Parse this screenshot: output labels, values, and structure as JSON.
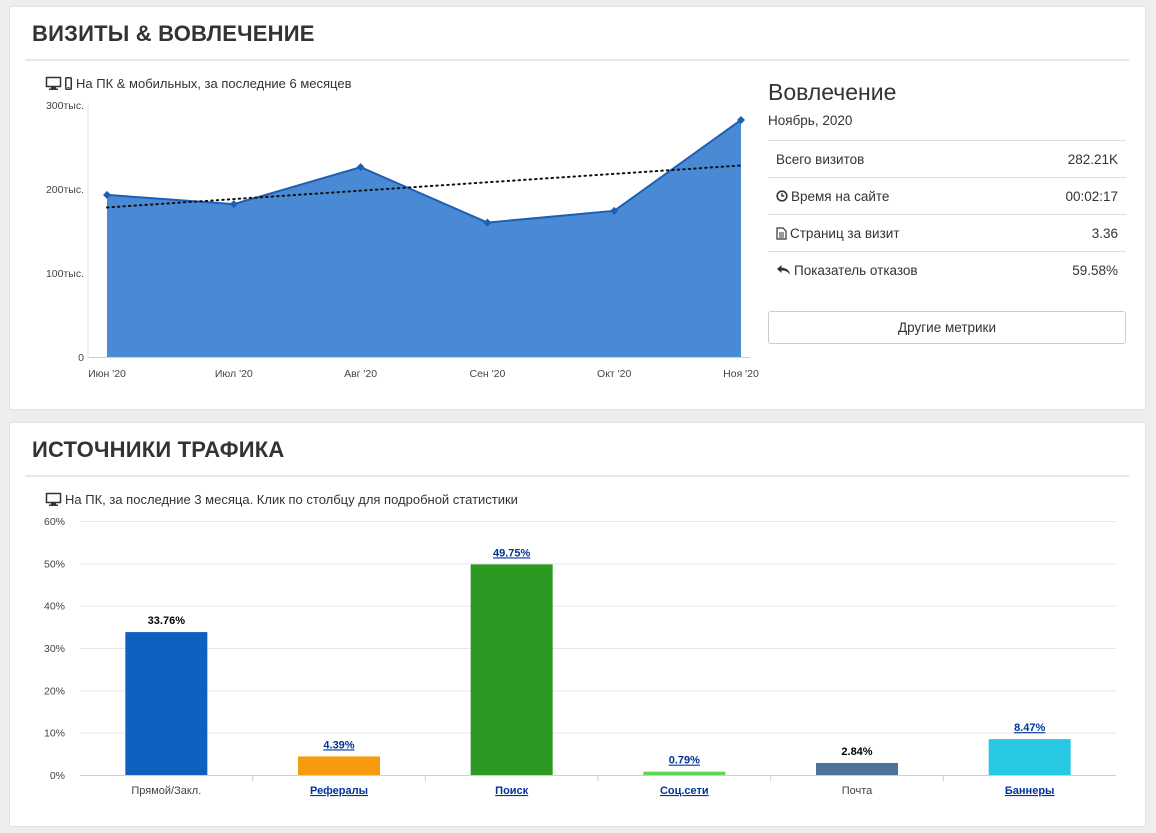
{
  "visits": {
    "title": "ВИЗИТЫ & ВОВЛЕЧЕНИЕ",
    "subtitle": "На ПК & мобильных, за последние 6 месяцев",
    "engagement": {
      "title": "Вовлечение",
      "date": "Ноябрь, 2020",
      "metrics": [
        {
          "icon": "none",
          "label": "Всего визитов",
          "value": "282.21K"
        },
        {
          "icon": "clock-icon",
          "label": "Время на сайте",
          "value": "00:02:17"
        },
        {
          "icon": "document-icon",
          "label": "Страниц за визит",
          "value": "3.36"
        },
        {
          "icon": "reply-arrow-icon",
          "label": "Показатель отказов",
          "value": "59.58%"
        }
      ],
      "more_button": "Другие метрики"
    }
  },
  "traffic": {
    "title": "ИСТОЧНИКИ ТРАФИКА",
    "subtitle": "На ПК, за последние 3 месяца. Клик по столбцу для подробной статистики"
  },
  "chart_data": [
    {
      "type": "area",
      "categories": [
        "Июн '20",
        "Июл '20",
        "Авг '20",
        "Сен '20",
        "Окт '20",
        "Ноя '20"
      ],
      "series": [
        {
          "values": [
            193000,
            182000,
            226000,
            160000,
            174000,
            282210
          ],
          "color": "#4a89d3",
          "line_color": "#1d5fb5"
        }
      ],
      "trendline": {
        "start": 178000,
        "end": 228000,
        "style": "dotted"
      },
      "ylim": [
        0,
        300000
      ],
      "yticks": [
        0,
        100000,
        200000,
        300000
      ],
      "ytick_labels": [
        "0",
        "100тыс.",
        "200тыс.",
        "300тыс."
      ],
      "grid": false
    },
    {
      "type": "bar",
      "categories": [
        "Прямой/Закл.",
        "Рефералы",
        "Поиск",
        "Соц.сети",
        "Почта",
        "Баннеры"
      ],
      "values": [
        33.76,
        4.39,
        49.75,
        0.79,
        2.84,
        8.47
      ],
      "value_labels": [
        "33.76%",
        "4.39%",
        "49.75%",
        "0.79%",
        "2.84%",
        "8.47%"
      ],
      "linked": [
        false,
        true,
        true,
        true,
        false,
        true
      ],
      "colors": [
        "#1060c0",
        "#f59b0d",
        "#2c9a22",
        "#5ed755",
        "#4e7398",
        "#27c8e3"
      ],
      "ylim": [
        0,
        60
      ],
      "yticks": [
        0,
        10,
        20,
        30,
        40,
        50,
        60
      ],
      "ytick_labels": [
        "0%",
        "10%",
        "20%",
        "30%",
        "40%",
        "50%",
        "60%"
      ],
      "grid": true
    }
  ]
}
